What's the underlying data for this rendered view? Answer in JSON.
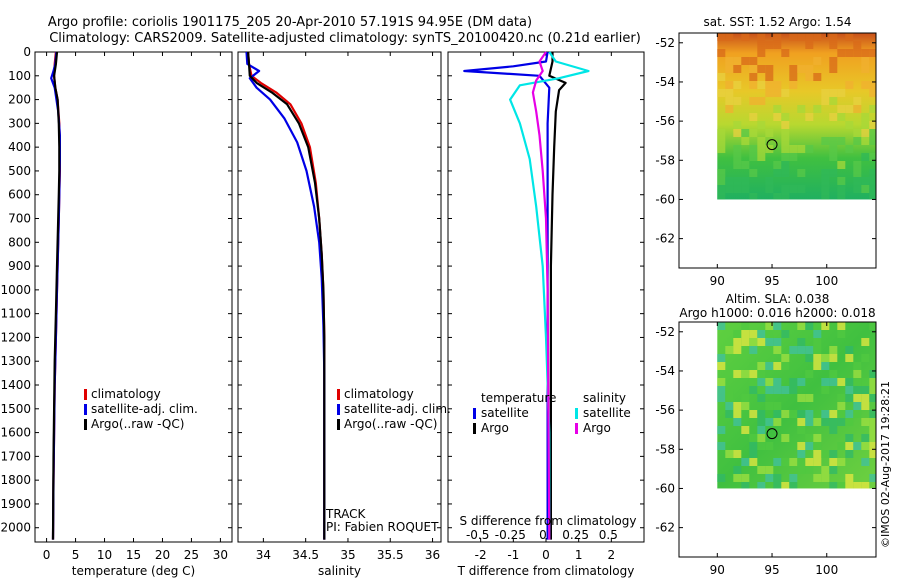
{
  "header": {
    "title_line1": "Argo profile: coriolis 1901175_205 20-Apr-2010 57.191S 94.95E (DM data)",
    "title_line2": "Climatology: CARS2009. Satellite-adjusted climatology: synTS_20100420.nc (0.21d earlier)"
  },
  "side_note": "©IMOS 02-Aug-2017 19:28:21",
  "colors": {
    "climatology": "#e00000",
    "satellite": "#0000e6",
    "argo": "#000000",
    "sat_salinity": "#00e6e6",
    "argo_salinity": "#e600e6"
  },
  "chart_data": [
    {
      "id": "temperature",
      "type": "line",
      "xlabel": "temperature (deg C)",
      "xlim": [
        -2,
        32
      ],
      "xticks": [
        "0",
        "5",
        "10",
        "15",
        "20",
        "25",
        "30"
      ],
      "xtick_values": [
        0,
        5,
        10,
        15,
        20,
        25,
        30
      ],
      "ylim": [
        0,
        2060
      ],
      "yticks": [
        "0",
        "100",
        "200",
        "300",
        "400",
        "500",
        "600",
        "700",
        "800",
        "900",
        "1000",
        "1100",
        "1200",
        "1300",
        "1400",
        "1500",
        "1600",
        "1700",
        "1800",
        "1900",
        "2000"
      ],
      "ytick_values": [
        0,
        100,
        200,
        300,
        400,
        500,
        600,
        700,
        800,
        900,
        1000,
        1100,
        1200,
        1300,
        1400,
        1500,
        1600,
        1700,
        1800,
        1900,
        2000
      ],
      "legend": [
        "climatology",
        "satellite-adj. clim.",
        "Argo(..raw -QC)"
      ],
      "series": [
        {
          "name": "climatology",
          "color": "#e00000",
          "x": [
            1.6,
            1.4,
            1.3,
            1.5,
            1.9,
            2.2,
            2.3,
            2.3,
            2.2,
            2.1,
            2.0,
            1.8,
            1.6,
            1.4,
            1.3,
            1.2,
            1.1
          ],
          "y": [
            0,
            50,
            100,
            150,
            200,
            300,
            400,
            500,
            600,
            700,
            800,
            1000,
            1200,
            1400,
            1600,
            1800,
            2050
          ]
        },
        {
          "name": "satellite-adj. clim.",
          "color": "#0000e6",
          "x": [
            1.7,
            1.5,
            1.2,
            0.8,
            1.4,
            2.0,
            2.3,
            2.3,
            2.2,
            2.1,
            2.0,
            1.8,
            1.6,
            1.4,
            1.3,
            1.2,
            1.1
          ],
          "y": [
            0,
            50,
            80,
            110,
            150,
            250,
            350,
            450,
            600,
            700,
            800,
            1000,
            1200,
            1400,
            1600,
            1800,
            2050
          ]
        },
        {
          "name": "Argo(..raw -QC)",
          "color": "#000000",
          "x": [
            1.8,
            1.6,
            1.3,
            1.5,
            1.9,
            2.1,
            2.2,
            2.2,
            2.1,
            2.0,
            1.8,
            1.6,
            1.4,
            1.3,
            1.2,
            1.1
          ],
          "y": [
            0,
            50,
            100,
            150,
            200,
            300,
            400,
            500,
            600,
            700,
            900,
            1100,
            1300,
            1500,
            1700,
            2050
          ]
        }
      ]
    },
    {
      "id": "salinity",
      "type": "line",
      "xlabel": "salinity",
      "xlim": [
        33.7,
        36.1
      ],
      "xticks": [
        "34",
        "34.5",
        "35",
        "35.5",
        "36"
      ],
      "xtick_values": [
        34,
        34.5,
        35,
        35.5,
        36
      ],
      "ylim": [
        0,
        2060
      ],
      "legend": [
        "climatology",
        "satellite-adj. clim.",
        "Argo(..raw -QC)"
      ],
      "annotation_lines": [
        "TRACK",
        "PI: Fabien ROQUET"
      ],
      "series": [
        {
          "name": "climatology",
          "color": "#e00000",
          "x": [
            33.82,
            33.83,
            33.86,
            33.97,
            34.15,
            34.32,
            34.45,
            34.55,
            34.62,
            34.66,
            34.69,
            34.71,
            34.72,
            34.72,
            34.72,
            34.72,
            34.72
          ],
          "y": [
            0,
            50,
            100,
            130,
            170,
            220,
            300,
            400,
            550,
            700,
            850,
            1000,
            1200,
            1400,
            1600,
            1800,
            2050
          ]
        },
        {
          "name": "satellite-adj. clim.",
          "color": "#0000e6",
          "x": [
            33.8,
            33.81,
            33.95,
            33.84,
            33.92,
            34.08,
            34.25,
            34.4,
            34.51,
            34.6,
            34.66,
            34.69,
            34.71,
            34.72,
            34.72,
            34.72,
            34.72
          ],
          "y": [
            0,
            50,
            80,
            110,
            150,
            200,
            280,
            380,
            500,
            650,
            800,
            950,
            1150,
            1350,
            1550,
            1800,
            2050
          ]
        },
        {
          "name": "Argo(..raw -QC)",
          "color": "#000000",
          "x": [
            33.82,
            33.83,
            33.84,
            33.92,
            34.1,
            34.28,
            34.42,
            34.53,
            34.61,
            34.66,
            34.69,
            34.71,
            34.72,
            34.72,
            34.72,
            34.72
          ],
          "y": [
            0,
            50,
            100,
            130,
            170,
            220,
            300,
            400,
            550,
            700,
            850,
            1000,
            1200,
            1400,
            1600,
            2050
          ]
        }
      ]
    },
    {
      "id": "differences",
      "type": "line",
      "xlabel": "T difference from climatology",
      "top_label": "S difference from climatology",
      "xlim": [
        -3,
        3
      ],
      "xticks": [
        "-2",
        "-1",
        "0",
        "1",
        "2"
      ],
      "xtick_values": [
        -2,
        -1,
        0,
        1,
        2
      ],
      "s_ticks": [
        "-0.5",
        "-0.25",
        "0",
        "0.25",
        "0.5"
      ],
      "s_tick_values": [
        -2,
        -1,
        0,
        1,
        2
      ],
      "ylim": [
        0,
        2060
      ],
      "legend_headers": [
        "temperature",
        "salinity"
      ],
      "legend_left": [
        "satellite",
        "Argo"
      ],
      "legend_right": [
        "satellite",
        "Argo"
      ],
      "series": [
        {
          "name": "T satellite",
          "color": "#0000e6",
          "x": [
            0.05,
            0.0,
            -1.0,
            -2.5,
            -0.2,
            0.1,
            0.05,
            0.05,
            0.05,
            0.05,
            0.05,
            0.05
          ],
          "y": [
            0,
            40,
            60,
            80,
            100,
            150,
            300,
            600,
            1000,
            1400,
            1800,
            2050
          ]
        },
        {
          "name": "T Argo",
          "color": "#000000",
          "x": [
            0.2,
            0.2,
            0.1,
            0.6,
            0.4,
            0.3,
            0.25,
            0.2,
            0.15,
            0.15,
            0.15,
            0.15
          ],
          "y": [
            0,
            40,
            100,
            130,
            160,
            250,
            400,
            600,
            900,
            1300,
            1700,
            2050
          ]
        },
        {
          "name": "S satellite",
          "color": "#00e6e6",
          "x": [
            0.1,
            0.3,
            1.3,
            0.4,
            -0.8,
            -1.1,
            -0.8,
            -0.5,
            -0.3,
            -0.1,
            0.0,
            0.1,
            0.1
          ],
          "y": [
            0,
            40,
            80,
            110,
            140,
            200,
            300,
            450,
            650,
            900,
            1200,
            1600,
            2050
          ]
        },
        {
          "name": "S Argo",
          "color": "#e600e6",
          "x": [
            0.0,
            -0.2,
            -0.1,
            -0.3,
            -0.4,
            -0.3,
            -0.2,
            -0.1,
            0.0,
            0.05,
            0.1
          ],
          "y": [
            0,
            40,
            80,
            120,
            170,
            250,
            350,
            500,
            700,
            1000,
            2050
          ]
        }
      ]
    },
    {
      "id": "sst-map",
      "type": "heatmap",
      "title": "sat. SST: 1.52 Argo: 1.54",
      "xlim": [
        86.5,
        104.5
      ],
      "ylim": [
        -63.5,
        -51.5
      ],
      "xticks": [
        "90",
        "95",
        "100"
      ],
      "xtick_values": [
        90,
        95,
        100
      ],
      "yticks": [
        "-52",
        "-54",
        "-56",
        "-58",
        "-60",
        "-62"
      ],
      "ytick_values": [
        -52,
        -54,
        -56,
        -58,
        -60,
        -62
      ],
      "data_extent": {
        "lon": [
          90,
          104.5
        ],
        "lat": [
          -60,
          -51.5
        ]
      },
      "marker": {
        "lon": 95,
        "lat": -57.2
      }
    },
    {
      "id": "sla-map",
      "type": "heatmap",
      "title_line1": "Altim. SLA: 0.038",
      "title_line2": "Argo h1000: 0.016 h2000: 0.018",
      "xlim": [
        86.5,
        104.5
      ],
      "ylim": [
        -63.5,
        -51.5
      ],
      "xticks": [
        "90",
        "95",
        "100"
      ],
      "xtick_values": [
        90,
        95,
        100
      ],
      "yticks": [
        "-52",
        "-54",
        "-56",
        "-58",
        "-60",
        "-62"
      ],
      "ytick_values": [
        -52,
        -54,
        -56,
        -58,
        -60,
        -62
      ],
      "data_extent": {
        "lon": [
          90,
          104.5
        ],
        "lat": [
          -60,
          -51.5
        ]
      },
      "marker": {
        "lon": 95,
        "lat": -57.2
      }
    }
  ]
}
